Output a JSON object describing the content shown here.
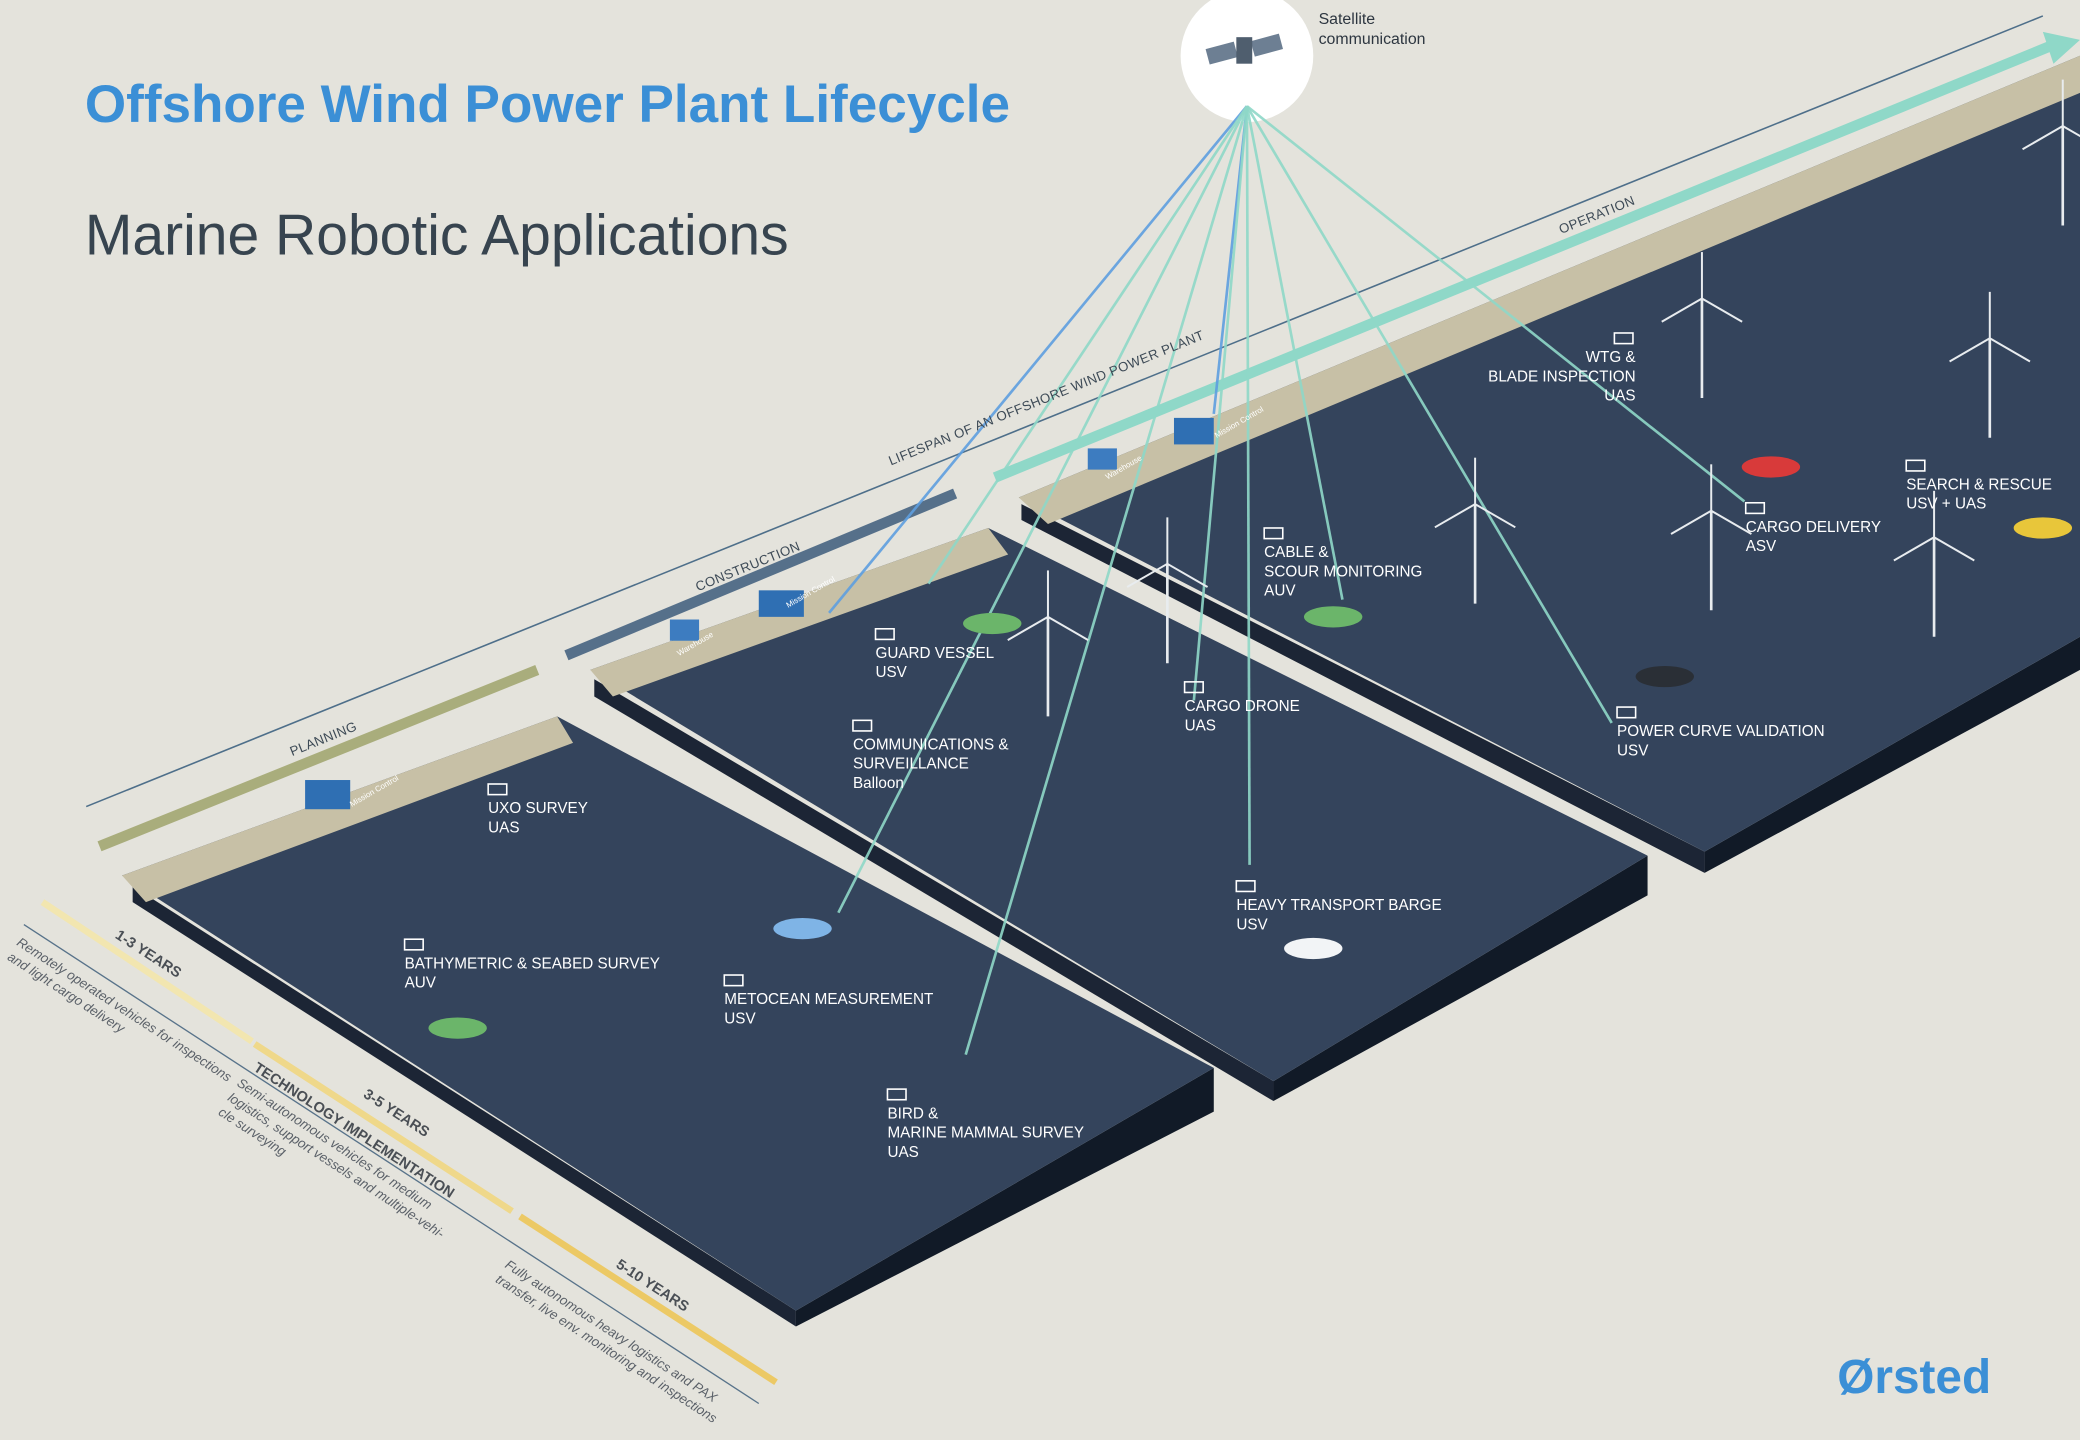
{
  "header": {
    "title": "Offshore Wind Power Plant Lifecycle",
    "subtitle": "Marine Robotic Applications"
  },
  "satellite": {
    "label": [
      "Satellite",
      "communication"
    ]
  },
  "lifespan": "LIFESPAN OF AN OFFSHORE WIND POWER PLANT",
  "phases": [
    "PLANNING",
    "CONSTRUCTION",
    "OPERATION"
  ],
  "facilities": [
    "Mission Control",
    "Warehouse"
  ],
  "timeline": {
    "label": "TECHNOLOGY IMPLEMENTATION",
    "stages": [
      {
        "years": "1-3 YEARS",
        "description": [
          "Remotely operated vehicles for inspections",
          "and light cargo delivery"
        ]
      },
      {
        "years": "3-5 YEARS",
        "description": [
          "Semi-autonomous vehicles for medium",
          "logistics, support vessels and multiple-vehi-",
          "cle surveying"
        ]
      },
      {
        "years": "5-10 YEARS",
        "description": [
          "Fully autonomous heavy logistics and PAX",
          "transfer, live env. monitoring and inspections"
        ]
      }
    ]
  },
  "applications": [
    {
      "lines": [
        "UXO SURVEY",
        "UAS"
      ]
    },
    {
      "lines": [
        "BATHYMETRIC & SEABED SURVEY",
        "AUV"
      ]
    },
    {
      "lines": [
        "METOCEAN MEASUREMENT",
        "USV"
      ]
    },
    {
      "lines": [
        "BIRD &",
        "MARINE MAMMAL SURVEY",
        "UAS"
      ]
    },
    {
      "lines": [
        "GUARD VESSEL",
        "USV"
      ]
    },
    {
      "lines": [
        "COMMUNICATIONS &",
        "SURVEILLANCE",
        "Balloon"
      ]
    },
    {
      "lines": [
        "CARGO DRONE",
        "UAS"
      ]
    },
    {
      "lines": [
        "HEAVY TRANSPORT BARGE",
        "USV"
      ]
    },
    {
      "lines": [
        "CABLE &",
        "SCOUR MONITORING",
        "AUV"
      ]
    },
    {
      "lines": [
        "WTG &",
        "BLADE INSPECTION",
        "UAS"
      ]
    },
    {
      "lines": [
        "CARGO DELIVERY",
        "ASV"
      ]
    },
    {
      "lines": [
        "SEARCH & RESCUE",
        "USV + UAS"
      ]
    },
    {
      "lines": [
        "POWER CURVE VALIDATION",
        "USV"
      ]
    }
  ],
  "logo": "Ørsted"
}
